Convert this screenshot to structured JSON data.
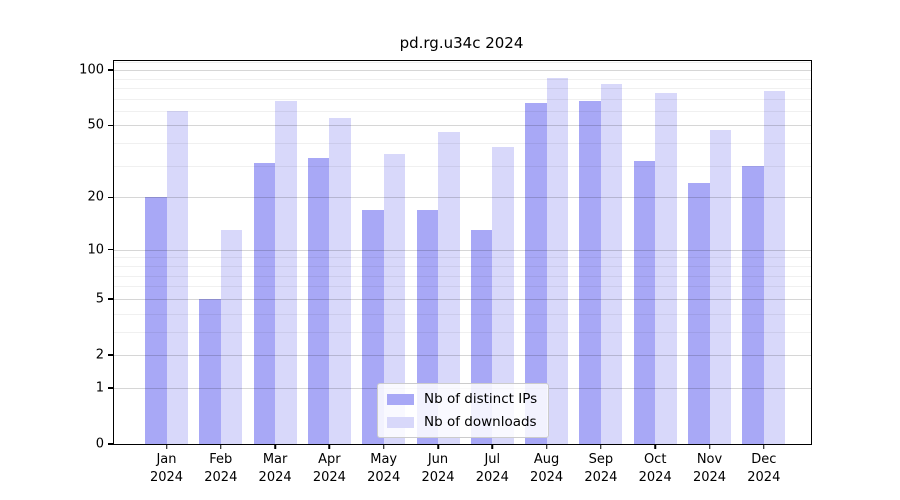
{
  "chart_data": {
    "type": "bar",
    "title": "pd.rg.u34c 2024",
    "xlabel": "",
    "ylabel": "",
    "yscale": "log1p",
    "ylim": [
      0,
      112
    ],
    "major_yticks": [
      0,
      1,
      2,
      5,
      10,
      20,
      50,
      100
    ],
    "minor_yticks": [
      3,
      4,
      6,
      7,
      8,
      9,
      30,
      40,
      60,
      70,
      80,
      90,
      110
    ],
    "grid": true,
    "legend_position": "lower-center-inside",
    "x_tick_labels": [
      {
        "month": "Jan",
        "year": "2024"
      },
      {
        "month": "Feb",
        "year": "2024"
      },
      {
        "month": "Mar",
        "year": "2024"
      },
      {
        "month": "Apr",
        "year": "2024"
      },
      {
        "month": "May",
        "year": "2024"
      },
      {
        "month": "Jun",
        "year": "2024"
      },
      {
        "month": "Jul",
        "year": "2024"
      },
      {
        "month": "Aug",
        "year": "2024"
      },
      {
        "month": "Sep",
        "year": "2024"
      },
      {
        "month": "Oct",
        "year": "2024"
      },
      {
        "month": "Nov",
        "year": "2024"
      },
      {
        "month": "Dec",
        "year": "2024"
      }
    ],
    "series": [
      {
        "name": "Nb of distinct IPs",
        "color": "#a8a8f6",
        "values": [
          20,
          5,
          31,
          33,
          17,
          17,
          13,
          66,
          68,
          32,
          24,
          30
        ]
      },
      {
        "name": "Nb of downloads",
        "color": "#d8d8fa",
        "values": [
          60,
          13,
          68,
          55,
          35,
          46,
          38,
          91,
          84,
          75,
          47,
          77
        ]
      }
    ]
  },
  "colors": {
    "background": "#ffffff",
    "axis": "#000000",
    "text": "#000000",
    "legend_border": "#cccccc"
  }
}
